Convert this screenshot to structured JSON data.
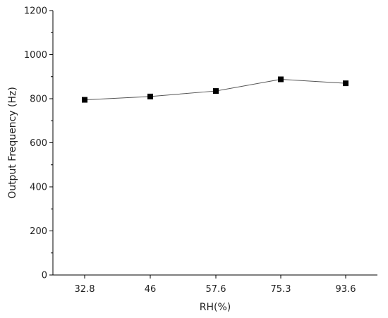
{
  "chart_data": {
    "type": "line",
    "xlabel": "RH(%)",
    "ylabel": "Output Frequency (Hz)",
    "categories": [
      "32.8",
      "46",
      "57.6",
      "75.3",
      "93.6"
    ],
    "series": [
      {
        "values": [
          795,
          810,
          835,
          888,
          870
        ]
      }
    ],
    "ylim": [
      0,
      1200
    ],
    "yticks": [
      "0",
      "200",
      "400",
      "600",
      "800",
      "1000",
      "1200"
    ],
    "marker": "square",
    "grid": false,
    "colors": {
      "line": "#555555",
      "marker": "#000000",
      "axis": "#000000"
    }
  }
}
